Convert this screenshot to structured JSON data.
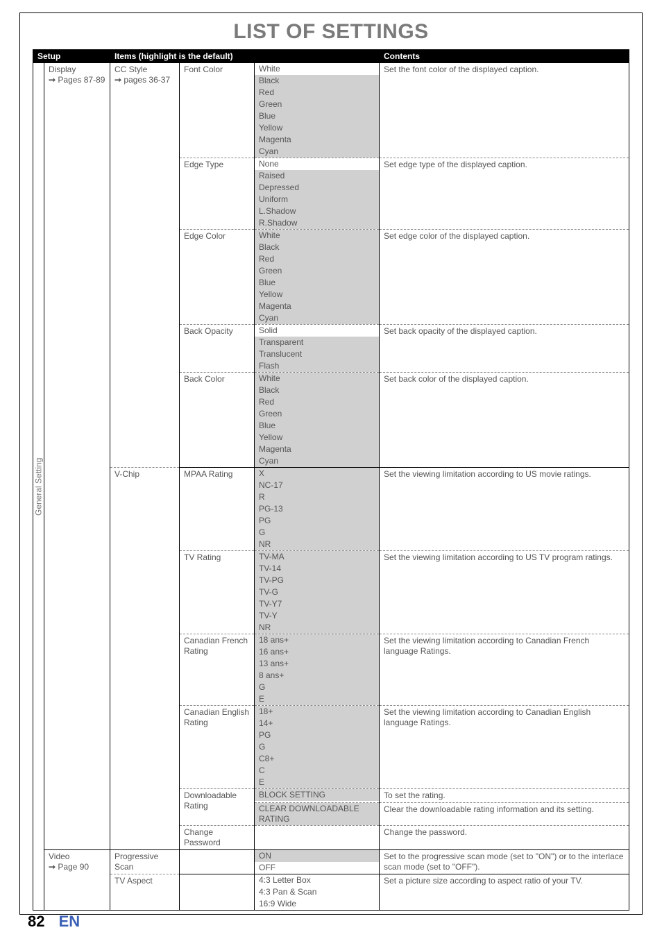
{
  "title": "LIST OF SETTINGS",
  "page_number": "82",
  "lang": "EN",
  "headers": {
    "setup": "Setup",
    "items": "Items (highlight is the default)",
    "contents": "Contents"
  },
  "vertical_label": "General Setting",
  "colors": {
    "title_color": "#7a7a7a",
    "header_bg": "#000000",
    "header_fg": "#ffffff",
    "highlight_bg": "#d0d0d0",
    "text_color": "#555555",
    "lang_color": "#3a5fb5"
  },
  "typography": {
    "title_fontsize": 30,
    "body_fontsize": 12,
    "footer_fontsize": 22
  },
  "groups": [
    {
      "setup": [
        "Display",
        "→ Pages 87-89"
      ],
      "sub": [
        "CC Style",
        "→ pages 36-37"
      ],
      "rows": [
        {
          "name": "Font Color",
          "options": [
            "White",
            "Black",
            "Red",
            "Green",
            "Blue",
            "Yellow",
            "Magenta",
            "Cyan"
          ],
          "highlight": [
            1,
            2,
            3,
            4,
            5,
            6,
            7
          ],
          "contents": "Set the font color of the displayed caption."
        },
        {
          "name": "Edge Type",
          "options": [
            "None",
            "Raised",
            "Depressed",
            "Uniform",
            "L.Shadow",
            "R.Shadow"
          ],
          "highlight": [
            1,
            2,
            3,
            4,
            5
          ],
          "contents": "Set edge type of the displayed caption."
        },
        {
          "name": "Edge Color",
          "options": [
            "White",
            "Black",
            "Red",
            "Green",
            "Blue",
            "Yellow",
            "Magenta",
            "Cyan"
          ],
          "highlight": [
            0,
            1,
            2,
            3,
            4,
            5,
            6,
            7
          ],
          "contents": "Set edge color of the displayed caption."
        },
        {
          "name": "Back Opacity",
          "options": [
            "Solid",
            "Transparent",
            "Translucent",
            "Flash"
          ],
          "highlight": [
            1,
            2,
            3
          ],
          "contents": "Set back opacity of the displayed caption."
        },
        {
          "name": "Back Color",
          "options": [
            "White",
            "Black",
            "Red",
            "Green",
            "Blue",
            "Yellow",
            "Magenta",
            "Cyan"
          ],
          "highlight": [
            0,
            1,
            2,
            3,
            4,
            5,
            6,
            7
          ],
          "contents": "Set back color of the displayed caption."
        }
      ]
    },
    {
      "setup": null,
      "sub": [
        "V-Chip"
      ],
      "rows": [
        {
          "name": "MPAA Rating",
          "options": [
            "X",
            "NC-17",
            "R",
            "PG-13",
            "PG",
            "G",
            "NR"
          ],
          "highlight": [
            0,
            1,
            2,
            3,
            4,
            5,
            6
          ],
          "contents": "Set the viewing limitation according to US movie ratings."
        },
        {
          "name": "TV Rating",
          "options": [
            "TV-MA",
            "TV-14",
            "TV-PG",
            "TV-G",
            "TV-Y7",
            "TV-Y",
            "NR"
          ],
          "highlight": [
            0,
            1,
            2,
            3,
            4,
            5,
            6
          ],
          "contents": "Set the viewing limitation according to US TV program ratings."
        },
        {
          "name": "Canadian French Rating",
          "options": [
            "18 ans+",
            "16 ans+",
            "13 ans+",
            "  8 ans+",
            "G",
            "E"
          ],
          "highlight": [
            0,
            1,
            2,
            3,
            4,
            5
          ],
          "contents": "Set the viewing limitation according to Canadian French language Ratings."
        },
        {
          "name": "Canadian English Rating",
          "options": [
            "18+",
            "14+",
            "PG",
            "G",
            "C8+",
            "C",
            "E"
          ],
          "highlight": [
            0,
            1,
            2,
            3,
            4,
            5,
            6
          ],
          "contents": "Set the viewing limitation according to Canadian English language Ratings."
        },
        {
          "name": "Downloadable Rating",
          "options": [
            "BLOCK SETTING"
          ],
          "highlight": [
            0
          ],
          "contents": "To set the rating.",
          "span_name": 2
        },
        {
          "name": "",
          "options": [
            "CLEAR DOWNLOADABLE RATING"
          ],
          "highlight": [
            0
          ],
          "contents": "Clear the downloadable rating information and its setting.",
          "sub_of_above": true
        },
        {
          "name": "Change Password",
          "options": [
            ""
          ],
          "highlight": [],
          "contents": "Change the password."
        }
      ]
    },
    {
      "setup": [
        "Video",
        "→ Page 90"
      ],
      "sub": [
        "Progressive Scan"
      ],
      "rows": [
        {
          "name": "",
          "options": [
            "ON",
            "OFF"
          ],
          "highlight": [
            0
          ],
          "contents": "Set to the progressive scan mode (set to \"ON\") or to the interlace scan mode (set to \"OFF\")."
        }
      ]
    },
    {
      "setup": null,
      "sub": [
        "TV Aspect"
      ],
      "rows": [
        {
          "name": "",
          "options": [
            "4:3 Letter Box",
            "4:3 Pan & Scan",
            "16:9 Wide"
          ],
          "highlight": [],
          "contents": "Set a picture size according to aspect ratio of your TV."
        }
      ]
    }
  ]
}
